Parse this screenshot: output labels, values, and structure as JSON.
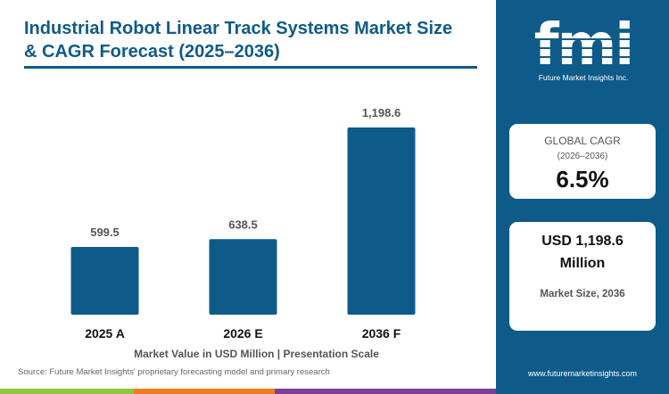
{
  "title": "Industrial Robot Linear Track Systems Market Size & CAGR Forecast (2025–2036)",
  "chart_data": {
    "type": "bar",
    "categories": [
      "2025 A",
      "2026 E",
      "2036 F"
    ],
    "values": [
      599.5,
      638.5,
      1198.6
    ],
    "value_labels": [
      "599.5",
      "638.5",
      "1,198.6"
    ],
    "xlabel": "Market Value in USD Million | Presentation Scale",
    "ylabel": "",
    "ylim": [
      0,
      1200
    ],
    "grid": false,
    "legend": "none",
    "bar_color": "#0e5b8a",
    "scale_note": "bar heights are on a presentation scale, not strictly proportional"
  },
  "source": "Source: Future Market Insights' proprietary forecasting model and primary research",
  "sidebar": {
    "logo_text": "fmi",
    "logo_tagline": "Future Market Insights Inc.",
    "cagr_label": "GLOBAL CAGR",
    "cagr_period": "(2026–2036)",
    "cagr_value": "6.5%",
    "market_value_line1": "USD 1,198.6",
    "market_value_line2": "Million",
    "market_label": "Market Size, 2036",
    "website": "www.futuremarketinsights.com"
  },
  "colors": {
    "brand_blue": "#0e5b8a",
    "stripe_green": "#8dc63f",
    "stripe_orange": "#f07c22",
    "stripe_purple": "#7b3f98"
  }
}
